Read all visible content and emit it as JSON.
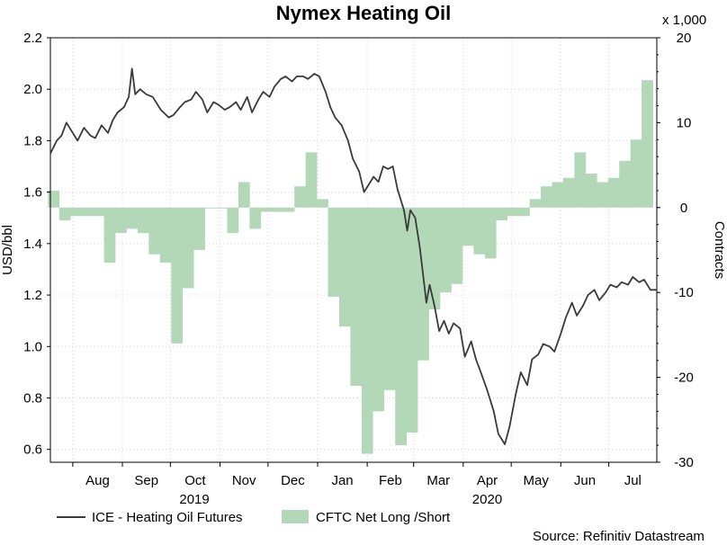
{
  "chart_data": {
    "type": "line+bar",
    "title": "Nymex Heating Oil",
    "left_axis": {
      "label": "USD/bbl",
      "min": 0.55,
      "max": 2.2,
      "ticks": [
        "0.6",
        "0.8",
        "1.0",
        "1.2",
        "1.4",
        "1.6",
        "1.8",
        "2.0",
        "2.2"
      ]
    },
    "right_axis": {
      "label": "Contracts",
      "multiplier": "x 1,000",
      "min": -30,
      "max": 20,
      "ticks": [
        "-30",
        "-20",
        "-10",
        "0",
        "10",
        "20"
      ]
    },
    "x_axis": {
      "months": [
        "Aug",
        "Sep",
        "Oct",
        "Nov",
        "Dec",
        "Jan",
        "Feb",
        "Mar",
        "Apr",
        "May",
        "Jun",
        "Jul"
      ],
      "years": [
        "2019",
        "2020"
      ],
      "start": "2019-07-18",
      "end": "2020-07-31"
    },
    "grid": true,
    "legend": {
      "position": "bottom"
    },
    "series": [
      {
        "name": "ICE - Heating Oil Futures",
        "kind": "line",
        "axis": "left",
        "color": "#3a3a3a",
        "points": [
          [
            "2019-07-18",
            1.75
          ],
          [
            "2019-07-22",
            1.8
          ],
          [
            "2019-07-25",
            1.82
          ],
          [
            "2019-07-28",
            1.87
          ],
          [
            "2019-08-01",
            1.83
          ],
          [
            "2019-08-04",
            1.8
          ],
          [
            "2019-08-08",
            1.85
          ],
          [
            "2019-08-12",
            1.82
          ],
          [
            "2019-08-15",
            1.81
          ],
          [
            "2019-08-19",
            1.86
          ],
          [
            "2019-08-23",
            1.83
          ],
          [
            "2019-08-26",
            1.88
          ],
          [
            "2019-08-29",
            1.91
          ],
          [
            "2019-09-02",
            1.93
          ],
          [
            "2019-09-05",
            1.97
          ],
          [
            "2019-09-07",
            2.08
          ],
          [
            "2019-09-09",
            1.98
          ],
          [
            "2019-09-12",
            2.0
          ],
          [
            "2019-09-16",
            1.98
          ],
          [
            "2019-09-20",
            1.97
          ],
          [
            "2019-09-25",
            1.92
          ],
          [
            "2019-09-30",
            1.89
          ],
          [
            "2019-10-03",
            1.9
          ],
          [
            "2019-10-07",
            1.93
          ],
          [
            "2019-10-10",
            1.95
          ],
          [
            "2019-10-14",
            1.96
          ],
          [
            "2019-10-17",
            1.99
          ],
          [
            "2019-10-21",
            1.96
          ],
          [
            "2019-10-24",
            1.91
          ],
          [
            "2019-10-28",
            1.95
          ],
          [
            "2019-10-31",
            1.94
          ],
          [
            "2019-11-04",
            1.92
          ],
          [
            "2019-11-07",
            1.93
          ],
          [
            "2019-11-11",
            1.95
          ],
          [
            "2019-11-14",
            1.92
          ],
          [
            "2019-11-18",
            1.97
          ],
          [
            "2019-11-21",
            1.91
          ],
          [
            "2019-11-25",
            1.96
          ],
          [
            "2019-11-28",
            1.99
          ],
          [
            "2019-12-02",
            1.97
          ],
          [
            "2019-12-05",
            2.01
          ],
          [
            "2019-12-09",
            2.04
          ],
          [
            "2019-12-12",
            2.05
          ],
          [
            "2019-12-16",
            2.03
          ],
          [
            "2019-12-19",
            2.05
          ],
          [
            "2019-12-23",
            2.05
          ],
          [
            "2019-12-26",
            2.04
          ],
          [
            "2019-12-30",
            2.06
          ],
          [
            "2020-01-02",
            2.05
          ],
          [
            "2020-01-06",
            1.99
          ],
          [
            "2020-01-09",
            1.93
          ],
          [
            "2020-01-12",
            1.89
          ],
          [
            "2020-01-16",
            1.86
          ],
          [
            "2020-01-20",
            1.8
          ],
          [
            "2020-01-23",
            1.73
          ],
          [
            "2020-01-27",
            1.68
          ],
          [
            "2020-01-30",
            1.6
          ],
          [
            "2020-02-02",
            1.63
          ],
          [
            "2020-02-05",
            1.66
          ],
          [
            "2020-02-08",
            1.64
          ],
          [
            "2020-02-11",
            1.7
          ],
          [
            "2020-02-14",
            1.69
          ],
          [
            "2020-02-17",
            1.7
          ],
          [
            "2020-02-20",
            1.61
          ],
          [
            "2020-02-24",
            1.53
          ],
          [
            "2020-02-26",
            1.45
          ],
          [
            "2020-02-28",
            1.53
          ],
          [
            "2020-03-02",
            1.5
          ],
          [
            "2020-03-05",
            1.38
          ],
          [
            "2020-03-09",
            1.17
          ],
          [
            "2020-03-11",
            1.24
          ],
          [
            "2020-03-14",
            1.16
          ],
          [
            "2020-03-17",
            1.06
          ],
          [
            "2020-03-20",
            1.1
          ],
          [
            "2020-03-23",
            1.05
          ],
          [
            "2020-03-26",
            1.09
          ],
          [
            "2020-03-30",
            1.07
          ],
          [
            "2020-04-02",
            0.96
          ],
          [
            "2020-04-06",
            1.02
          ],
          [
            "2020-04-09",
            0.95
          ],
          [
            "2020-04-12",
            0.9
          ],
          [
            "2020-04-16",
            0.83
          ],
          [
            "2020-04-20",
            0.75
          ],
          [
            "2020-04-23",
            0.66
          ],
          [
            "2020-04-27",
            0.62
          ],
          [
            "2020-04-30",
            0.69
          ],
          [
            "2020-05-04",
            0.82
          ],
          [
            "2020-05-07",
            0.9
          ],
          [
            "2020-05-11",
            0.85
          ],
          [
            "2020-05-14",
            0.95
          ],
          [
            "2020-05-18",
            0.97
          ],
          [
            "2020-05-21",
            1.01
          ],
          [
            "2020-05-25",
            1.0
          ],
          [
            "2020-05-28",
            0.98
          ],
          [
            "2020-06-01",
            1.05
          ],
          [
            "2020-06-04",
            1.11
          ],
          [
            "2020-06-08",
            1.17
          ],
          [
            "2020-06-11",
            1.12
          ],
          [
            "2020-06-15",
            1.16
          ],
          [
            "2020-06-18",
            1.2
          ],
          [
            "2020-06-22",
            1.22
          ],
          [
            "2020-06-25",
            1.18
          ],
          [
            "2020-06-29",
            1.21
          ],
          [
            "2020-07-02",
            1.24
          ],
          [
            "2020-07-06",
            1.23
          ],
          [
            "2020-07-09",
            1.25
          ],
          [
            "2020-07-13",
            1.24
          ],
          [
            "2020-07-16",
            1.27
          ],
          [
            "2020-07-20",
            1.25
          ],
          [
            "2020-07-23",
            1.26
          ],
          [
            "2020-07-27",
            1.22
          ],
          [
            "2020-07-31",
            1.22
          ]
        ]
      },
      {
        "name": "CFTC Net Long /Short",
        "kind": "bar",
        "axis": "right",
        "color": "#b3d8b8",
        "points": [
          [
            "2019-07-20",
            2
          ],
          [
            "2019-07-27",
            -1.5
          ],
          [
            "2019-08-03",
            -1
          ],
          [
            "2019-08-10",
            -1
          ],
          [
            "2019-08-17",
            -1
          ],
          [
            "2019-08-24",
            -6.5
          ],
          [
            "2019-08-31",
            -3
          ],
          [
            "2019-09-07",
            -2.5
          ],
          [
            "2019-09-14",
            -3
          ],
          [
            "2019-09-21",
            -5.5
          ],
          [
            "2019-09-28",
            -6.5
          ],
          [
            "2019-10-05",
            -16
          ],
          [
            "2019-10-12",
            -9.5
          ],
          [
            "2019-10-19",
            -5
          ],
          [
            "2019-10-26",
            0
          ],
          [
            "2019-11-02",
            0
          ],
          [
            "2019-11-09",
            -3
          ],
          [
            "2019-11-16",
            3
          ],
          [
            "2019-11-23",
            -2.5
          ],
          [
            "2019-11-30",
            -0.5
          ],
          [
            "2019-12-07",
            -0.5
          ],
          [
            "2019-12-14",
            -0.5
          ],
          [
            "2019-12-21",
            2.5
          ],
          [
            "2019-12-28",
            6.5
          ],
          [
            "2020-01-04",
            1
          ],
          [
            "2020-01-11",
            -10.5
          ],
          [
            "2020-01-18",
            -14
          ],
          [
            "2020-01-25",
            -21
          ],
          [
            "2020-02-01",
            -29
          ],
          [
            "2020-02-08",
            -24
          ],
          [
            "2020-02-15",
            -21.5
          ],
          [
            "2020-02-22",
            -28
          ],
          [
            "2020-02-29",
            -26.5
          ],
          [
            "2020-03-07",
            -18
          ],
          [
            "2020-03-14",
            -12
          ],
          [
            "2020-03-21",
            -10
          ],
          [
            "2020-03-28",
            -9
          ],
          [
            "2020-04-04",
            -4.5
          ],
          [
            "2020-04-11",
            -5.5
          ],
          [
            "2020-04-18",
            -6
          ],
          [
            "2020-04-25",
            -1.5
          ],
          [
            "2020-05-02",
            -1
          ],
          [
            "2020-05-09",
            -1
          ],
          [
            "2020-05-16",
            1
          ],
          [
            "2020-05-23",
            2.5
          ],
          [
            "2020-05-30",
            3
          ],
          [
            "2020-06-06",
            3.5
          ],
          [
            "2020-06-13",
            6.5
          ],
          [
            "2020-06-20",
            4
          ],
          [
            "2020-06-27",
            3
          ],
          [
            "2020-07-04",
            3.5
          ],
          [
            "2020-07-11",
            5.5
          ],
          [
            "2020-07-18",
            8
          ],
          [
            "2020-07-25",
            15
          ]
        ]
      }
    ],
    "source": "Source: Refinitiv Datastream"
  }
}
